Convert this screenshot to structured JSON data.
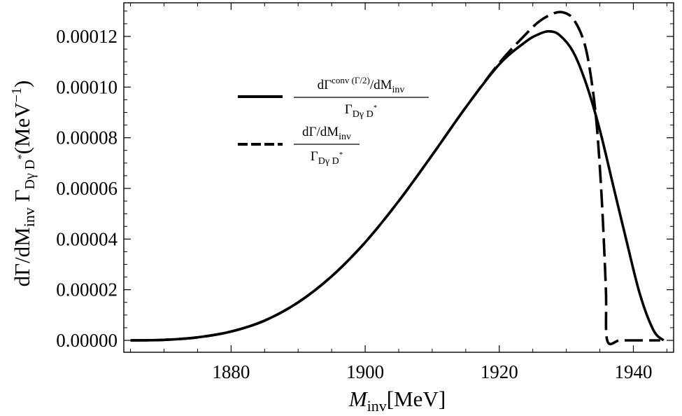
{
  "chart_data": {
    "type": "line",
    "xlim": [
      1864,
      1946
    ],
    "ylim": [
      0,
      0.000131
    ],
    "x_ticks": [
      1880,
      1900,
      1920,
      1940
    ],
    "x_tick_labels": [
      "1880",
      "1900",
      "1920",
      "1940"
    ],
    "y_ticks": [
      0,
      2e-05,
      4e-05,
      6e-05,
      8e-05,
      0.0001,
      0.00012
    ],
    "y_tick_labels": [
      "0.00000",
      "0.00002",
      "0.00004",
      "0.00006",
      "0.00008",
      "0.00010",
      "0.00012"
    ],
    "xlabel": {
      "main": "M",
      "sub": "inv",
      "rest": "[MeV]"
    },
    "ylabel": {
      "p1": "dΓ/dM",
      "p1_sub": "inv",
      "p2": " Γ",
      "p2_sub": "Dγ D",
      "p2_sup": "*",
      "p3": "(MeV",
      "p3_sup": "−1",
      "p4": ")"
    },
    "grid": false,
    "legend_position": "upper-left-center",
    "series": [
      {
        "legend": {
          "num_main": "dΓ",
          "num_sup": "conv (Γ/2)",
          "num_rest": "/dM",
          "num_sub": "inv",
          "den_main": "Γ",
          "den_sub": "Dγ D",
          "den_sup": "*"
        },
        "style": "solid",
        "color": "#000000",
        "x": [
          1865,
          1870,
          1875,
          1880,
          1885,
          1890,
          1895,
          1900,
          1905,
          1910,
          1915,
          1920,
          1924,
          1926,
          1927.5,
          1929,
          1931,
          1933,
          1935,
          1937,
          1939,
          1941,
          1943,
          1944.5
        ],
        "y": [
          0.0,
          2e-07,
          1.2e-06,
          3.5e-06,
          7.8e-06,
          1.5e-05,
          2.53e-05,
          3.87e-05,
          5.5e-05,
          7.32e-05,
          9.2e-05,
          0.000109,
          0.000118,
          0.000121,
          0.000122,
          0.0001205,
          0.000114,
          0.000101,
          8.3e-05,
          6.1e-05,
          3.9e-05,
          1.8e-05,
          4e-06,
          0.0
        ]
      },
      {
        "legend": {
          "num_main": "dΓ",
          "num_rest": "/dM",
          "num_sub": "inv",
          "den_main": "Γ",
          "den_sub": "Dγ D",
          "den_sup": "*"
        },
        "style": "dashed",
        "color": "#000000",
        "x": [
          1865,
          1870,
          1875,
          1880,
          1885,
          1890,
          1895,
          1900,
          1905,
          1910,
          1915,
          1920,
          1924,
          1926,
          1928,
          1929.5,
          1931,
          1932.5,
          1933.5,
          1934.5,
          1935.3,
          1935.9,
          1936.1,
          1938,
          1941,
          1944
        ],
        "y": [
          0.0,
          2e-07,
          1.2e-06,
          3.5e-06,
          7.8e-06,
          1.5e-05,
          2.53e-05,
          3.87e-05,
          5.5e-05,
          7.32e-05,
          9.2e-05,
          0.0001095,
          0.000121,
          0.000126,
          0.000129,
          0.0001295,
          0.000127,
          0.000119,
          0.000107,
          8.6e-05,
          5.5e-05,
          2e-05,
          0.0,
          0.0,
          0.0,
          0.0
        ]
      }
    ]
  }
}
